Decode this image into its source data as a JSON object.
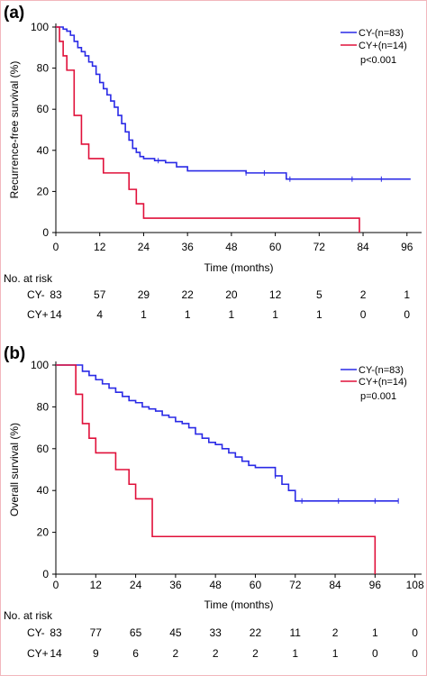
{
  "colors": {
    "cy_neg": "#2a2ae6",
    "cy_pos": "#e0103a",
    "axis": "#000000"
  },
  "chart_data": [
    {
      "panel_label": "(a)",
      "type": "line",
      "ylabel": "Recurrence-free survival (%)",
      "xlabel": "Time (months)",
      "xlim": [
        0,
        100
      ],
      "ylim": [
        0,
        100
      ],
      "x_ticks": [
        0,
        12,
        24,
        36,
        48,
        60,
        72,
        84,
        96
      ],
      "y_ticks": [
        0,
        20,
        40,
        60,
        80,
        100
      ],
      "legend_position": "top-right",
      "legend": [
        {
          "label": "CY-(n=83)",
          "color": "#2a2ae6"
        },
        {
          "label": "CY+(n=14)",
          "color": "#e0103a"
        }
      ],
      "pvalue": "p<0.001",
      "series": [
        {
          "name": "CY-(n=83)",
          "color": "#2a2ae6",
          "x": [
            0,
            1,
            2,
            3,
            4,
            5,
            6,
            7,
            8,
            9,
            10,
            11,
            12,
            13,
            14,
            15,
            16,
            17,
            18,
            19,
            20,
            21,
            22,
            23,
            24,
            27,
            30,
            33,
            36,
            44,
            52,
            56,
            60,
            63,
            72,
            80,
            88,
            97
          ],
          "y": [
            100,
            100,
            99,
            98,
            96,
            93,
            90,
            88,
            86,
            83,
            81,
            77,
            73,
            70,
            67,
            64,
            61,
            57,
            53,
            49,
            45,
            41,
            39,
            37,
            36,
            35,
            34,
            32,
            30,
            30,
            29,
            29,
            29,
            26,
            26,
            26,
            26,
            26
          ],
          "censor_x": [
            28,
            52,
            57,
            64,
            81,
            89
          ]
        },
        {
          "name": "CY+(n=14)",
          "color": "#e0103a",
          "x": [
            0,
            1,
            2,
            3,
            5,
            7,
            9,
            13,
            17,
            20,
            21,
            22,
            23,
            24,
            83
          ],
          "y": [
            100,
            93,
            86,
            79,
            57,
            43,
            36,
            29,
            29,
            21,
            21,
            14,
            14,
            7,
            7
          ],
          "end_drop_to": 0
        }
      ],
      "risk_table": {
        "title": "No. at risk",
        "rows": [
          {
            "label": "CY-",
            "values": [
              "83",
              "57",
              "29",
              "22",
              "20",
              "12",
              "5",
              "2",
              "1"
            ]
          },
          {
            "label": "CY+",
            "values": [
              "14",
              "4",
              "1",
              "1",
              "1",
              "1",
              "1",
              "0",
              "0"
            ]
          }
        ]
      }
    },
    {
      "panel_label": "(b)",
      "type": "line",
      "ylabel": "Overall survival (%)",
      "xlabel": "Time (months)",
      "xlim": [
        0,
        110
      ],
      "ylim": [
        0,
        100
      ],
      "x_ticks": [
        0,
        12,
        24,
        36,
        48,
        60,
        72,
        84,
        96,
        108
      ],
      "y_ticks": [
        0,
        20,
        40,
        60,
        80,
        100
      ],
      "legend_position": "top-right",
      "legend": [
        {
          "label": "CY-(n=83)",
          "color": "#2a2ae6"
        },
        {
          "label": "CY+(n=14)",
          "color": "#e0103a"
        }
      ],
      "pvalue": "p=0.001",
      "series": [
        {
          "name": "CY-(n=83)",
          "color": "#2a2ae6",
          "x": [
            0,
            6,
            8,
            10,
            12,
            14,
            16,
            18,
            20,
            22,
            24,
            26,
            28,
            30,
            32,
            34,
            36,
            38,
            40,
            42,
            44,
            46,
            48,
            50,
            52,
            54,
            56,
            58,
            60,
            64,
            66,
            68,
            70,
            72,
            80,
            90,
            100,
            103
          ],
          "y": [
            100,
            100,
            97,
            95,
            93,
            91,
            89,
            87,
            85,
            83,
            82,
            80,
            79,
            78,
            76,
            75,
            73,
            72,
            70,
            67,
            65,
            63,
            62,
            60,
            58,
            56,
            54,
            52,
            51,
            51,
            47,
            43,
            40,
            35,
            35,
            35,
            35,
            35
          ],
          "censor_x": [
            66,
            74,
            85,
            96,
            103
          ]
        },
        {
          "name": "CY+(n=14)",
          "color": "#e0103a",
          "x": [
            0,
            5,
            6,
            8,
            10,
            12,
            16,
            18,
            22,
            24,
            26,
            28,
            29,
            32,
            40,
            60,
            80,
            96
          ],
          "y": [
            100,
            100,
            86,
            72,
            65,
            58,
            58,
            50,
            43,
            36,
            36,
            36,
            18,
            18,
            18,
            18,
            18,
            18
          ],
          "end_drop_to": 0
        }
      ],
      "risk_table": {
        "title": "No. at risk",
        "rows": [
          {
            "label": "CY-",
            "values": [
              "83",
              "77",
              "65",
              "45",
              "33",
              "22",
              "11",
              "2",
              "1",
              "0"
            ]
          },
          {
            "label": "CY+",
            "values": [
              "14",
              "9",
              "6",
              "2",
              "2",
              "2",
              "1",
              "1",
              "0",
              "0"
            ]
          }
        ]
      }
    }
  ]
}
